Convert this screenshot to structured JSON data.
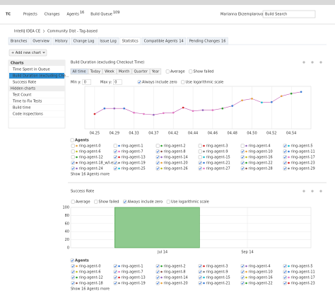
{
  "header": {
    "logo": "TC",
    "nav": [
      {
        "label": "Projects"
      },
      {
        "label": "Changes"
      },
      {
        "label": "Agents",
        "count": 16
      },
      {
        "label": "Build Queue",
        "count": 109
      }
    ],
    "user": "Marianna Ekzemplarova",
    "search": "Build Search"
  },
  "breadcrumb": [
    "IntelliJ IDEA CE",
    "Community Dist - Tag-based"
  ],
  "tabs": [
    {
      "label": "Branches"
    },
    {
      "label": "Overview"
    },
    {
      "label": "History"
    },
    {
      "label": "Change Log"
    },
    {
      "label": "Issue Log"
    },
    {
      "label": "Statistics",
      "active": true
    },
    {
      "label": "Compatible Agents",
      "count": 14
    },
    {
      "label": "Pending Changes",
      "count": 16
    }
  ],
  "add_chart": "+ Add new chart",
  "sidebar": {
    "title": "Charts",
    "items": [
      {
        "label": "Time Spent in Queue"
      },
      {
        "label": "Build Duration (excluding Che...",
        "selected": true
      },
      {
        "label": "Success Rate"
      }
    ],
    "hidden_title": "Hidden charts",
    "hidden_items": [
      {
        "label": "Test Count"
      },
      {
        "label": "Time to Fix Tests"
      },
      {
        "label": "Build time"
      },
      {
        "label": "Code inspections"
      }
    ]
  },
  "charts": [
    {
      "type": "line",
      "title": "Build Duration (excluding Checkout Time)",
      "periods": [
        "All time",
        "Today",
        "Week",
        "Month",
        "Quarter",
        "Year"
      ],
      "active_period": 0,
      "options": [
        {
          "label": "Average",
          "checked": false
        },
        {
          "label": "Show failed",
          "checked": false
        }
      ],
      "min_y_label": "Min y:",
      "min_y": 0,
      "max_y_label": "Max y:",
      "max_y": 0,
      "scale_options": [
        {
          "label": "Always include zero",
          "checked": true
        },
        {
          "label": "Use logarithmic scale",
          "checked": false
        }
      ],
      "x": [
        0,
        1,
        2,
        3,
        4,
        5,
        6,
        7,
        8,
        9,
        10,
        11,
        12,
        13,
        14,
        15,
        16,
        17,
        18,
        19,
        20,
        21
      ],
      "values": [
        35,
        48,
        48,
        48,
        38,
        35,
        33,
        37,
        38,
        50,
        42,
        44,
        44,
        48,
        54,
        67,
        71,
        62,
        63,
        77,
        83,
        87
      ],
      "colors": [
        "#d62728",
        "#3a7bd5",
        "#9467bd",
        "#3a7bd5",
        "#e377c2",
        "#e377c2",
        "#9467bd",
        "#e377c2",
        "#e377c2",
        "#d62728",
        "#e377c2",
        "#9467bd",
        "#e377c2",
        "#2ca02c",
        "#3a7bd5",
        "#e6a23c",
        "#e6a23c",
        "#17becf",
        "#3a7bd5",
        "#e6a23c",
        "#2ca02c",
        "#3a7bd5"
      ],
      "line_color": "#c05ab0",
      "xlim": [
        -1,
        22
      ],
      "ylim": [
        0,
        100
      ],
      "xticks": [
        {
          "value": 0,
          "label": "04.25"
        },
        {
          "value": 2,
          "label": "04.29"
        },
        {
          "value": 4,
          "label": "04.33"
        },
        {
          "value": 6,
          "label": "04.37"
        },
        {
          "value": 8,
          "label": "04.42"
        },
        {
          "value": 10,
          "label": "04.44"
        },
        {
          "value": 12,
          "label": "04.46"
        },
        {
          "value": 14,
          "label": "04.48"
        },
        {
          "value": 16,
          "label": "04.50"
        },
        {
          "value": 18,
          "label": "04.52"
        },
        {
          "value": 20,
          "label": "04.54"
        }
      ],
      "agents_title": "Agents",
      "agents": [
        "ring-agent-0",
        "ring-agent-1",
        "ring-agent-2",
        "ring-agent-3",
        "ring-agent-4",
        "ring-agent-5",
        "ring-agent-6",
        "ring-agent-7",
        "ring-agent-8",
        "ring-agent-9",
        "ring-agent-10",
        "ring-agent-11",
        "ring-agent-12",
        "ring-agent-13",
        "ring-agent-14",
        "ring-agent-15",
        "ring-agent-16",
        "ring-agent-17",
        "ring-agent-18_w/l-ex...",
        "ring-agent-19",
        "ring-agent-20",
        "ring-agent-21",
        "ring-agent-22",
        "ring-agent-23",
        "ring-agent-24",
        "ring-agent-25",
        "ring-agent-26",
        "ring-agent-27",
        "ring-agent-28",
        "ring-agent-29"
      ],
      "agent_checked": [
        false,
        false,
        false,
        false,
        false,
        true,
        false,
        true,
        true,
        false,
        true,
        true,
        false,
        true,
        true,
        false,
        true,
        true,
        true,
        true,
        true,
        true,
        true,
        true,
        true,
        true,
        true,
        true,
        true,
        true
      ],
      "agent_colors": [
        "#e6a23c",
        "#3a7bd5",
        "#2ca02c",
        "#d62728",
        "#9467bd",
        "#17becf",
        "#bcbd22",
        "#e377c2",
        "#8c564b",
        "#7f7f7f",
        "#e6a23c",
        "#3a7bd5",
        "#2ca02c",
        "#d62728",
        "#9467bd",
        "#17becf",
        "#bcbd22",
        "#e377c2",
        "#8c564b",
        "#7f7f7f",
        "#e6a23c",
        "#3a7bd5",
        "#2ca02c",
        "#d62728",
        "#9467bd",
        "#17becf",
        "#bcbd22",
        "#e377c2",
        "#8c564b",
        "#7f7f7f"
      ],
      "more": "Show 16 Agents more"
    },
    {
      "type": "histogram",
      "title": "Success Rate",
      "options": [
        {
          "label": "Average",
          "checked": false
        },
        {
          "label": "Show failed",
          "checked": false
        },
        {
          "label": "Always include zero",
          "checked": true
        },
        {
          "label": "Use logarithmic scale",
          "checked": false
        }
      ],
      "bins": [
        5.87,
        7.87
      ],
      "values": [
        100
      ],
      "color": "#8fca8f",
      "edge_color": "#3d9a3d",
      "xlim": [
        4.83,
        10.5
      ],
      "ylim": [
        0,
        100
      ],
      "xticks": [
        {
          "value": 7,
          "label": "Jul 14"
        },
        {
          "value": 9,
          "label": "Sep 14"
        }
      ],
      "yticks": [
        0,
        20,
        40,
        60,
        80,
        100
      ],
      "agents_title": "Agents",
      "agents": [
        "ring-agent-0",
        "ring-agent-1",
        "ring-agent-2",
        "ring-agent-3",
        "ring-agent-4",
        "ring-agent-5",
        "ring-agent-6",
        "ring-agent-7",
        "ring-agent-8",
        "ring-agent-9",
        "ring-agent-10",
        "ring-agent-11",
        "ring-agent-12",
        "ring-agent-13",
        "ring-agent-14",
        "ring-agent-15",
        "ring-agent-16",
        "ring-agent-17",
        "ring-agent-18",
        "ring-agent-19",
        "ring-agent-20",
        "ring-agent-21",
        "ring-agent-22",
        "ring-agent-23"
      ],
      "agent_checked": [
        true,
        true,
        true,
        true,
        true,
        true,
        true,
        true,
        true,
        true,
        true,
        true,
        true,
        true,
        true,
        true,
        true,
        true,
        true,
        true,
        true,
        true,
        true,
        true
      ],
      "agent_colors": [
        "#e6a23c",
        "#3a7bd5",
        "#2ca02c",
        "#d62728",
        "#9467bd",
        "#17becf",
        "#bcbd22",
        "#e377c2",
        "#8c564b",
        "#7f7f7f",
        "#e6a23c",
        "#3a7bd5",
        "#2ca02c",
        "#d62728",
        "#9467bd",
        "#17becf",
        "#bcbd22",
        "#e377c2",
        "#8c564b",
        "#7f7f7f",
        "#e6a23c",
        "#3a7bd5",
        "#2ca02c",
        "#d62728"
      ],
      "more": "Show 16 Agents more"
    }
  ]
}
